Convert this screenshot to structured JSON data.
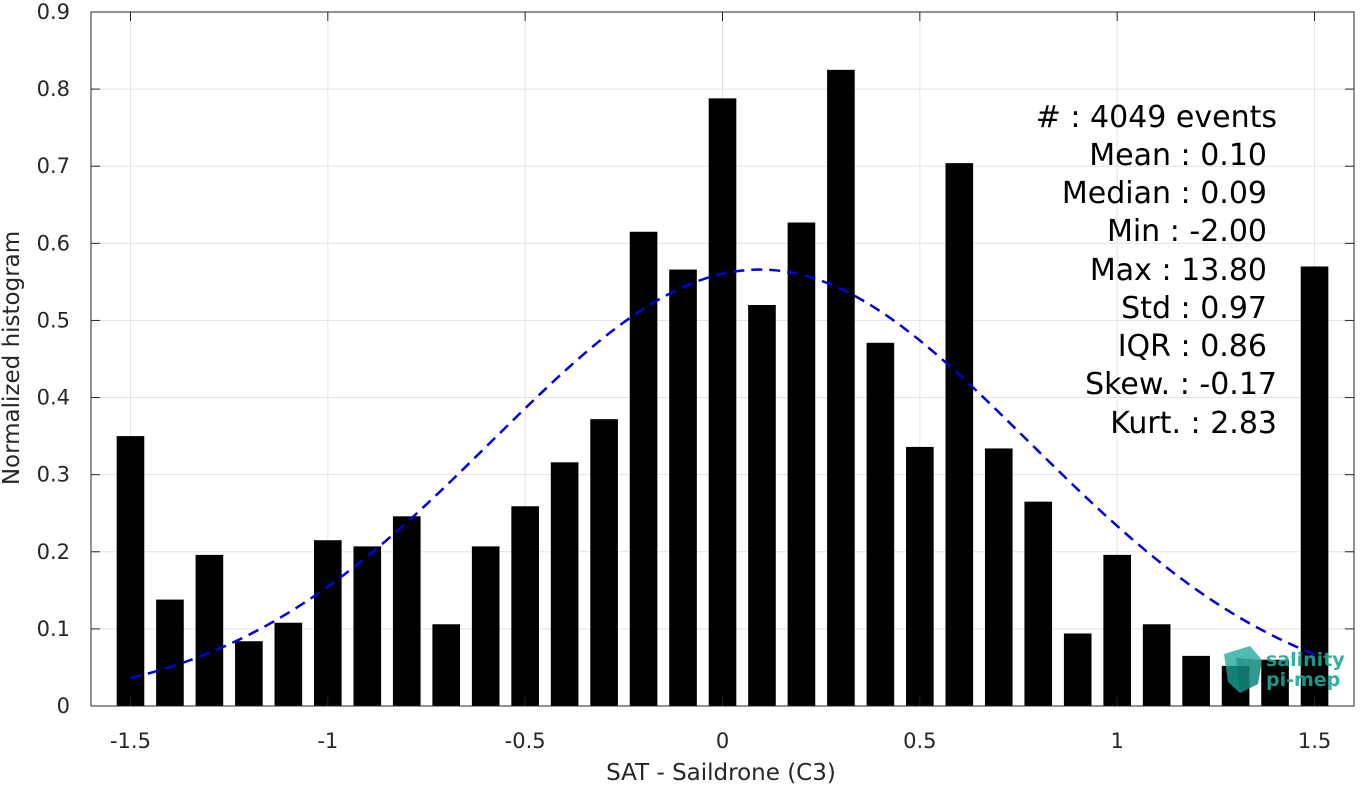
{
  "chart_data": {
    "type": "bar",
    "xlabel": "SAT - Saildrone (C3)",
    "ylabel": "Normalized histogram",
    "xlim": [
      -1.6,
      1.6
    ],
    "ylim": [
      0,
      0.9
    ],
    "x_ticks": [
      -1.5,
      -1,
      -0.5,
      0,
      0.5,
      1,
      1.5
    ],
    "x_tick_labels": [
      "-1.5",
      "-1",
      "-0.5",
      "0",
      "0.5",
      "1",
      "1.5"
    ],
    "y_ticks": [
      0,
      0.1,
      0.2,
      0.3,
      0.4,
      0.5,
      0.6,
      0.7,
      0.8,
      0.9
    ],
    "y_tick_labels": [
      "0",
      "0.1",
      "0.2",
      "0.3",
      "0.4",
      "0.5",
      "0.6",
      "0.7",
      "0.8",
      "0.9"
    ],
    "grid": true,
    "bar_color": "#000000",
    "bar_width": 0.07,
    "series": [
      {
        "x": [
          -1.5,
          -1.4,
          -1.3,
          -1.2,
          -1.1,
          -1.0,
          -0.9,
          -0.8,
          -0.7,
          -0.6,
          -0.5,
          -0.4,
          -0.3,
          -0.2,
          -0.1,
          0.0,
          0.1,
          0.2,
          0.3,
          0.4,
          0.5,
          0.6,
          0.7,
          0.8,
          0.9,
          1.0,
          1.1,
          1.2,
          1.3,
          1.4,
          1.5
        ],
        "values": [
          0.35,
          0.138,
          0.196,
          0.084,
          0.108,
          0.215,
          0.207,
          0.246,
          0.106,
          0.207,
          0.259,
          0.316,
          0.372,
          0.615,
          0.566,
          0.788,
          0.52,
          0.627,
          0.825,
          0.471,
          0.336,
          0.704,
          0.334,
          0.265,
          0.094,
          0.196,
          0.106,
          0.065,
          0.052,
          0.06,
          0.57
        ]
      }
    ],
    "fit_curve": {
      "style": "dashed",
      "color": "#0000dd",
      "mean": 0.095,
      "std": 0.68,
      "peak": 0.566,
      "x_range": [
        -1.5,
        1.5
      ]
    }
  },
  "stats": {
    "lines": [
      "#  : 4049 events",
      "Mean : 0.10",
      "Median : 0.09",
      "Min : -2.00",
      "Max : 13.80",
      "Std : 0.97",
      "IQR : 0.86",
      "Skew. : -0.17",
      "Kurt. : 2.83"
    ]
  },
  "logo": {
    "line1": "salinity",
    "line2": "pi-mep",
    "color": "#1aa89a"
  }
}
